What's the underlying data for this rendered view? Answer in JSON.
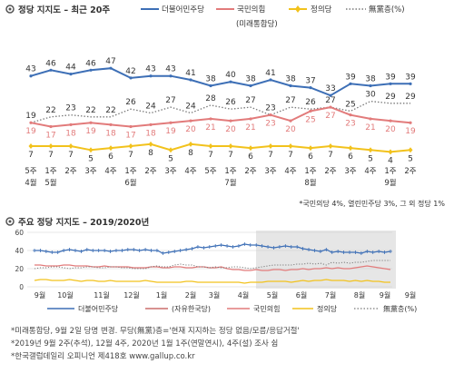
{
  "colors": {
    "minjoo": "#3d6fb6",
    "pph": "#e27b7b",
    "justice": "#f2c21c",
    "none": "#7a7a7a",
    "title_mark": "#555555",
    "shade": "#e6e6e6"
  },
  "chart_data": [
    {
      "type": "line",
      "title": "정당 지지도 – 최근 20주",
      "legend_position": "top-right",
      "legend": {
        "minjoo": "더불어민주당",
        "pph_line1": "국민의힘",
        "pph_line2": "(미래통합당)",
        "justice": "정의당",
        "none": "無黨층(%)"
      },
      "x_labels_top": [
        "5주",
        "1주",
        "2주",
        "3주",
        "4주",
        "1주",
        "2주",
        "3주",
        "4주",
        "5주",
        "1주",
        "2주",
        "3주",
        "4주",
        "1주",
        "2주",
        "3주",
        "4주",
        "1주",
        "2주"
      ],
      "x_labels_bottom": [
        "4월",
        "5월",
        "",
        "",
        "",
        "6월",
        "",
        "",
        "",
        "",
        "7월",
        "",
        "",
        "",
        "8월",
        "",
        "",
        "",
        "9월",
        ""
      ],
      "ylim": [
        0,
        55
      ],
      "grid": false,
      "series": [
        {
          "name": "더불어민주당",
          "key": "minjoo",
          "values": [
            43,
            46,
            44,
            46,
            47,
            42,
            43,
            43,
            41,
            38,
            40,
            38,
            41,
            38,
            37,
            33,
            39,
            38,
            39,
            39
          ]
        },
        {
          "name": "無黨층(%)",
          "key": "none",
          "values": [
            19,
            22,
            23,
            22,
            22,
            26,
            24,
            27,
            24,
            28,
            26,
            27,
            23,
            27,
            26,
            27,
            25,
            30,
            29,
            29
          ]
        },
        {
          "name": "국민의힘",
          "key": "pph",
          "values": [
            19,
            17,
            18,
            19,
            18,
            17,
            18,
            19,
            20,
            21,
            20,
            21,
            23,
            20,
            25,
            27,
            23,
            21,
            20,
            19
          ]
        },
        {
          "name": "정의당",
          "key": "justice",
          "values": [
            7,
            7,
            7,
            5,
            6,
            7,
            8,
            5,
            8,
            7,
            7,
            6,
            7,
            7,
            6,
            7,
            6,
            5,
            4,
            5
          ]
        }
      ],
      "note": "*국민의당 4%, 열린민주당 3%, 그 외 정당 1%"
    },
    {
      "type": "line",
      "title": "주요 정당 지지도 – 2019/2020년",
      "yticks": [
        0,
        20,
        40,
        60
      ],
      "ylim": [
        0,
        60
      ],
      "month_labels": [
        "9월",
        "10월",
        "11월",
        "12월",
        "1월",
        "2월",
        "3월",
        "4월",
        "5월",
        "6월",
        "7월",
        "8월",
        "9월",
        "9월"
      ],
      "legend": {
        "minjoo": "더불어민주당",
        "korea": "(자유한국당)",
        "pph": "국민의힘",
        "justice": "정의당",
        "none": "無黨층(%)"
      },
      "series": [
        {
          "name": "더불어민주당",
          "key": "minjoo",
          "values": [
            40,
            40,
            39,
            38,
            38,
            40,
            41,
            40,
            39,
            41,
            40,
            40,
            40,
            39,
            40,
            40,
            41,
            41,
            40,
            41,
            40,
            40,
            37,
            38,
            39,
            40,
            41,
            42,
            44,
            43,
            44,
            45,
            46,
            45,
            44,
            45,
            47,
            46,
            46,
            45,
            44,
            43,
            44,
            45,
            44,
            44,
            42,
            41,
            40,
            39,
            41,
            38,
            39,
            38,
            38,
            38,
            37,
            39,
            38,
            39,
            38,
            39
          ]
        },
        {
          "name": "自由韓國黨/국민의힘",
          "key": "pph",
          "values": [
            24,
            24,
            23,
            23,
            23,
            24,
            24,
            23,
            23,
            23,
            22,
            22,
            23,
            22,
            22,
            22,
            22,
            21,
            21,
            21,
            22,
            22,
            21,
            21,
            22,
            22,
            21,
            21,
            22,
            22,
            21,
            21,
            22,
            20,
            19,
            19,
            18,
            18,
            19,
            18,
            18,
            19,
            19,
            18,
            19,
            19,
            20,
            19,
            20,
            20,
            21,
            20,
            21,
            20,
            20,
            21,
            22,
            23,
            22,
            21,
            20,
            19
          ]
        },
        {
          "name": "無黨층(%)",
          "key": "none",
          "values": [
            20,
            21,
            21,
            22,
            22,
            21,
            20,
            21,
            21,
            22,
            22,
            21,
            21,
            22,
            22,
            21,
            21,
            20,
            20,
            20,
            22,
            23,
            22,
            22,
            24,
            25,
            24,
            24,
            22,
            22,
            21,
            22,
            21,
            21,
            22,
            22,
            21,
            20,
            21,
            22,
            23,
            24,
            24,
            24,
            24,
            25,
            25,
            26,
            25,
            26,
            24,
            27,
            26,
            27,
            26,
            27,
            27,
            28,
            29,
            29,
            29,
            29
          ]
        },
        {
          "name": "정의당",
          "key": "justice",
          "values": [
            7,
            8,
            8,
            7,
            7,
            7,
            8,
            7,
            6,
            7,
            7,
            6,
            6,
            7,
            6,
            6,
            6,
            6,
            6,
            7,
            6,
            5,
            5,
            5,
            5,
            5,
            6,
            6,
            5,
            5,
            5,
            5,
            5,
            5,
            5,
            5,
            4,
            5,
            5,
            5,
            6,
            6,
            6,
            6,
            5,
            6,
            7,
            6,
            7,
            7,
            8,
            7,
            7,
            7,
            6,
            7,
            6,
            7,
            6,
            6,
            5,
            5
          ]
        }
      ]
    }
  ],
  "footnotes": [
    "*미래통합당, 9월 2일 당명 변경. 무당(無黨)층='현재 지지하는 정당 없음/모름/응답거절'",
    "*2019년 9월 2주(추석), 12월 4주, 2020년 1월 1주(연말연시), 4주(설) 조사 쉼",
    "*한국갤럽데일리 오피니언 제418호 www.gallup.co.kr"
  ]
}
